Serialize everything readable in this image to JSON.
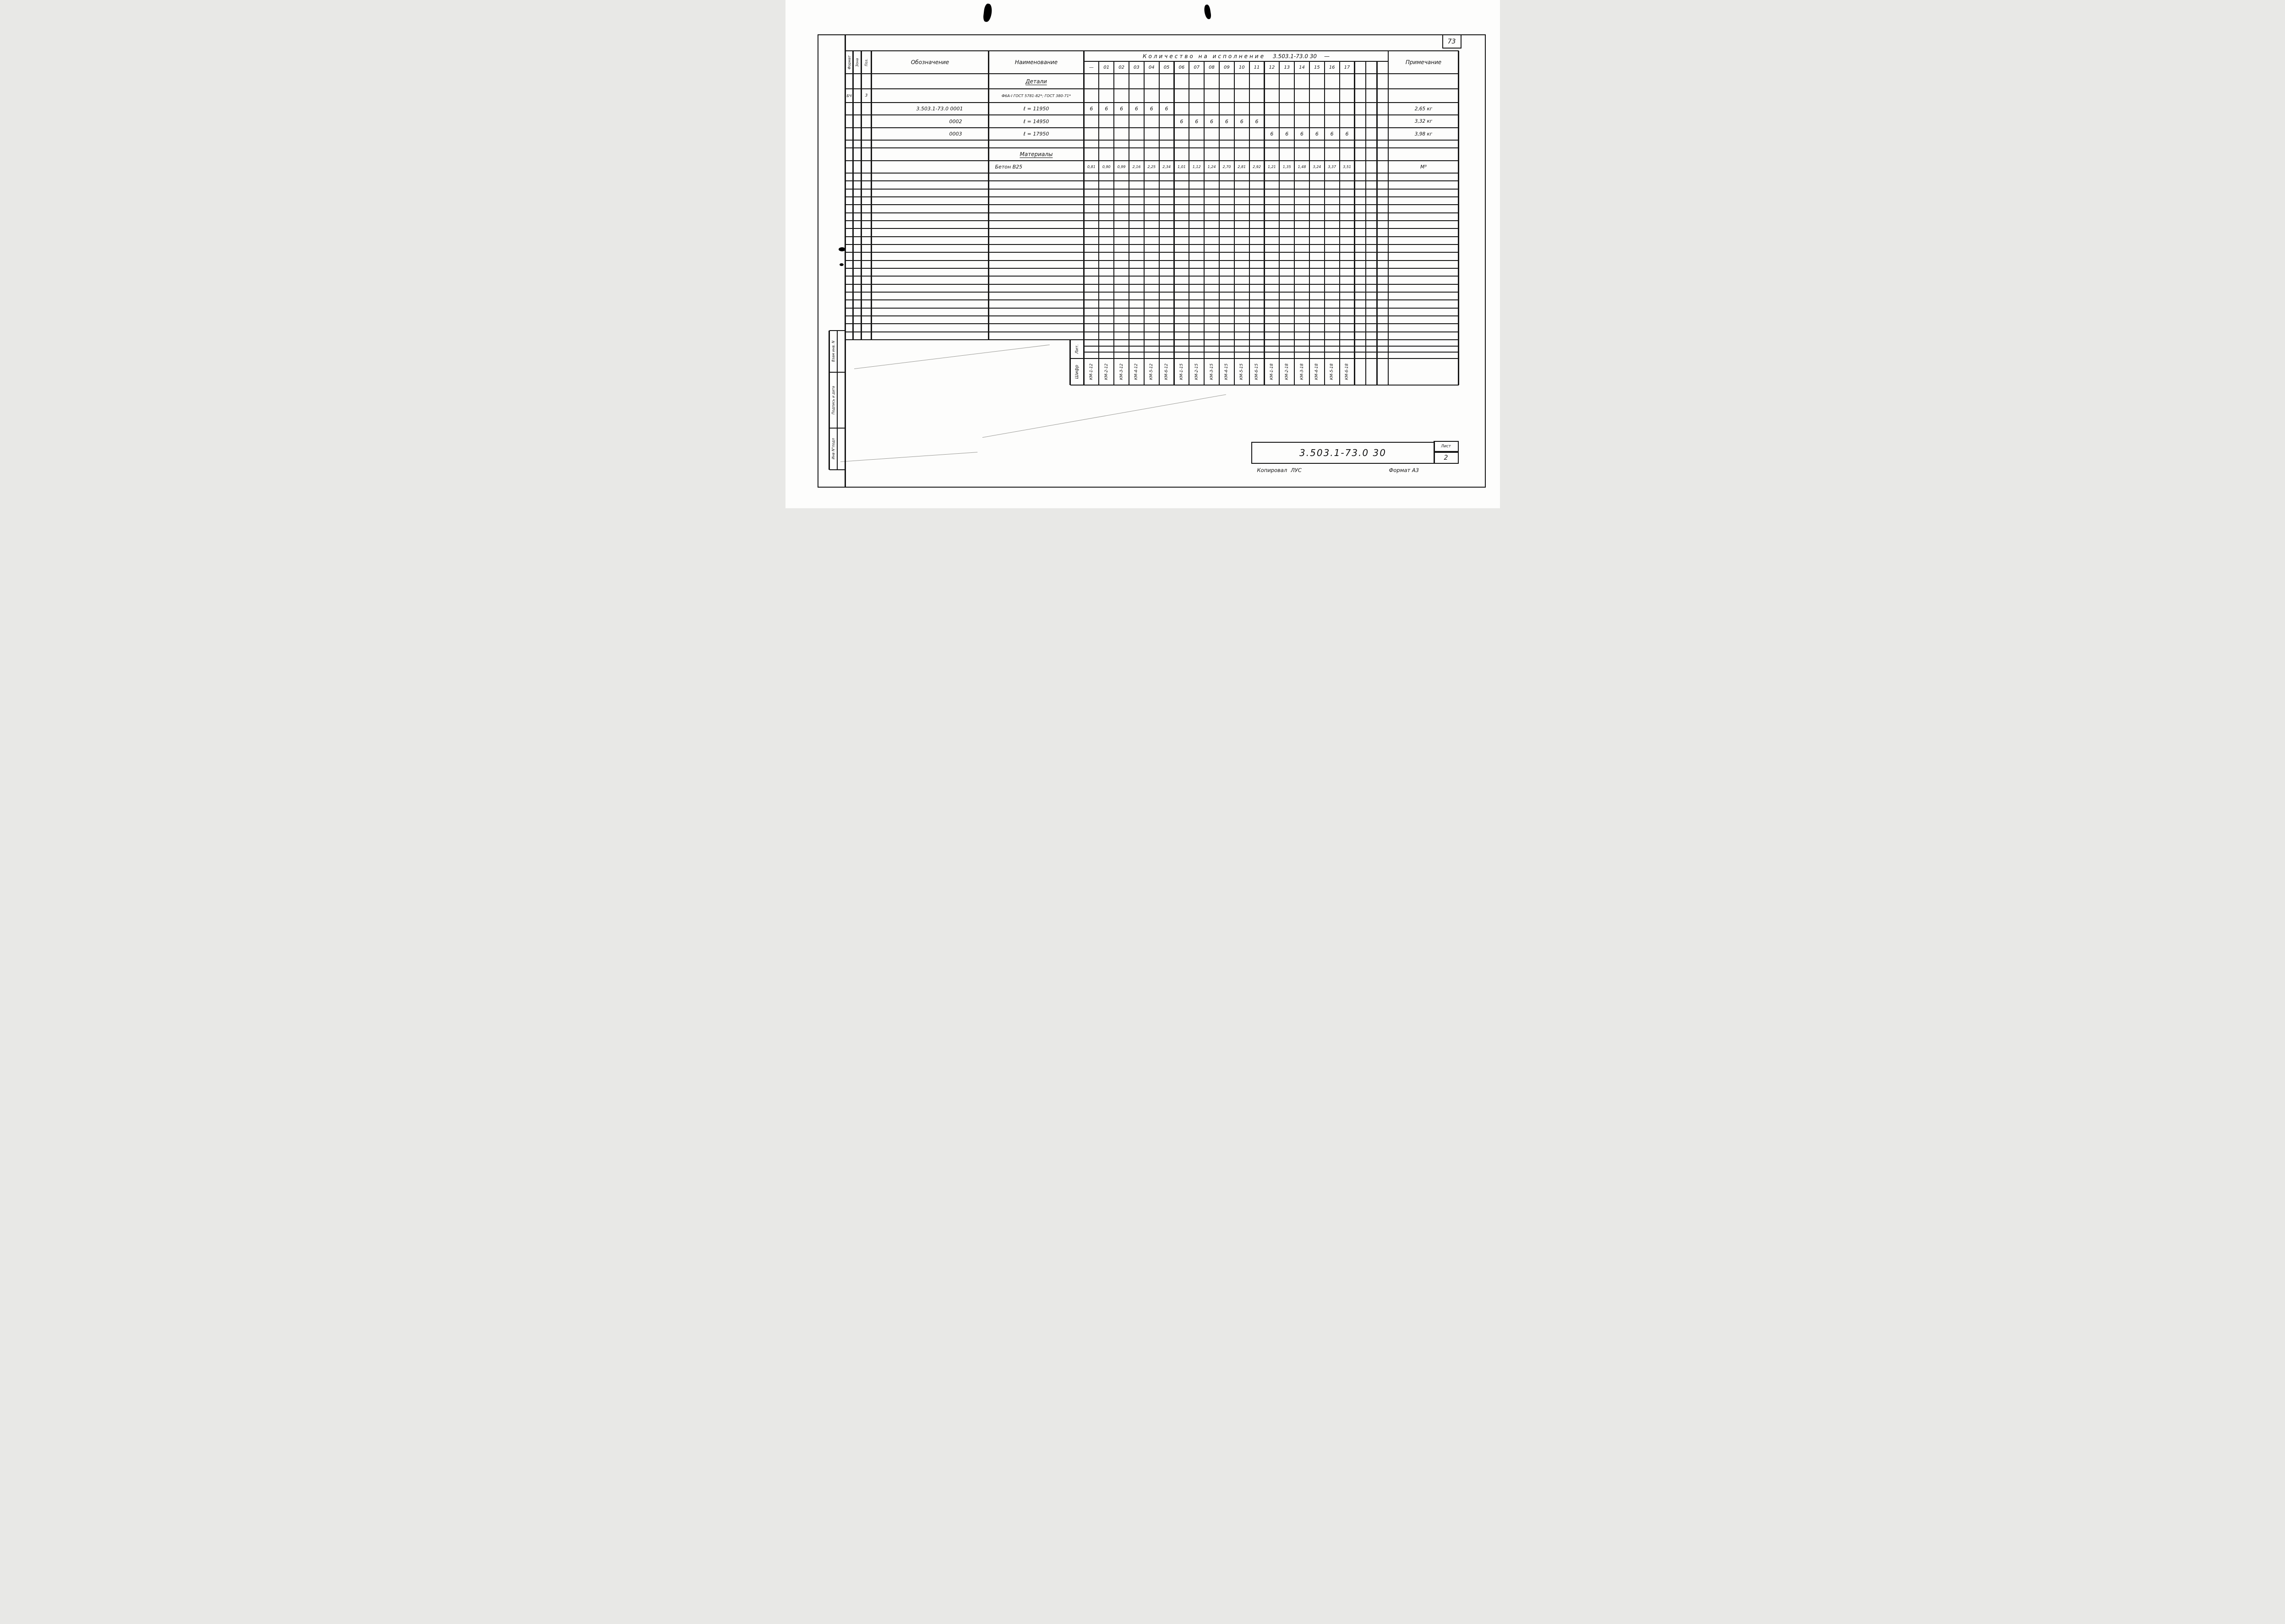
{
  "page": {
    "number": "73",
    "format_note": "Формат А3",
    "copied_label": "Копировал",
    "copied_signature": "ЛУС"
  },
  "sidebar": {
    "labels": [
      "Взам инв. N",
      "Подпись и дата",
      "Инв N°подл"
    ]
  },
  "table": {
    "header": {
      "qty_title": "Количество  на  исполнение",
      "qty_doc": "3.503.1-73.0 30",
      "qty_dash": "—",
      "col_format": "Формат",
      "col_zona": "Зона",
      "col_poz": "Поз.",
      "col_oboznachenie": "Обозначение",
      "col_naimenovanie": "Наименование",
      "col_primechanie": "Примечание",
      "qty_cols": [
        "—",
        "01",
        "02",
        "03",
        "04",
        "05",
        "06",
        "07",
        "08",
        "09",
        "10",
        "11",
        "12",
        "13",
        "14",
        "15",
        "16",
        "17"
      ]
    },
    "sections": {
      "details": "Детали",
      "materials": "Материалы"
    },
    "gost_row": {
      "format": "БЧ",
      "poz": "3",
      "name": "Ф6А-I ГОСТ 5781-82*; ГОСТ 380-71*"
    },
    "items": [
      {
        "designation": "3.503.1-73.0  0001",
        "name": "ℓ = 11950",
        "qty": [
          "6",
          "6",
          "6",
          "6",
          "6",
          "6",
          "",
          "",
          "",
          "",
          "",
          "",
          "",
          "",
          "",
          "",
          "",
          ""
        ],
        "note": "2,65 кг"
      },
      {
        "designation": "0002",
        "name": "ℓ = 14950",
        "qty": [
          "",
          "",
          "",
          "",
          "",
          "",
          "6",
          "6",
          "6",
          "6",
          "6",
          "6",
          "",
          "",
          "",
          "",
          "",
          ""
        ],
        "note": "3,32 кг"
      },
      {
        "designation": "0003",
        "name": "ℓ = 17950",
        "qty": [
          "",
          "",
          "",
          "",
          "",
          "",
          "",
          "",
          "",
          "",
          "",
          "",
          "6",
          "6",
          "6",
          "6",
          "6",
          "6"
        ],
        "note": "3,98 кг"
      }
    ],
    "material_row": {
      "name": "Бетон В25",
      "values": [
        "0,81",
        "0,90",
        "0,99",
        "2,16",
        "2,25",
        "2,34",
        "1,01",
        "1,12",
        "1,24",
        "2,70",
        "2,81",
        "2,92",
        "1,21",
        "1,35",
        "1,48",
        "3,24",
        "3,37",
        "3,51"
      ],
      "note": "М³"
    },
    "footer": {
      "lit_label": "Лит.",
      "shifr_label": "Шифр",
      "codes": [
        "КМ-1-12",
        "КМ-2-12",
        "КМ-3-12",
        "КМ-4-12",
        "КМ-5-12",
        "КМ-6-12",
        "КМ-1-15",
        "КМ-2-15",
        "КМ-3-15",
        "КМ-4-15",
        "КМ-5-15",
        "КМ-6-15",
        "КМ-1-18",
        "КМ-2-18",
        "КМ-3-18",
        "КМ-4-18",
        "КМ-5-18",
        "КМ-6-18"
      ]
    }
  },
  "stamp": {
    "doc_code": "3.503.1-73.0 30",
    "sheet_label": "Лист",
    "sheet_number": "2"
  }
}
